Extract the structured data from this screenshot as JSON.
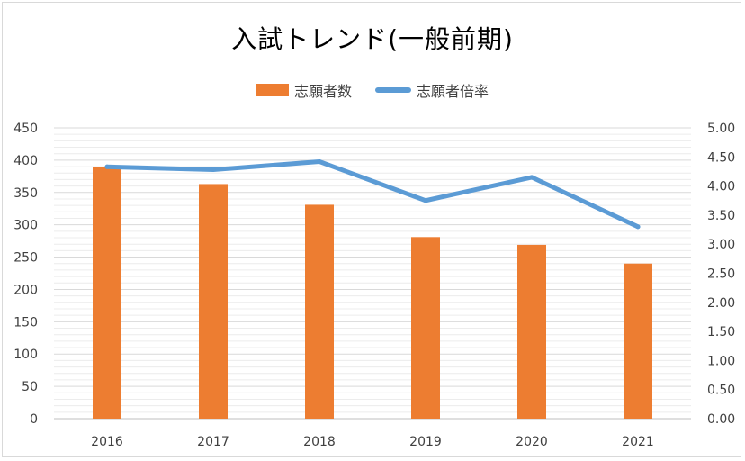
{
  "chart_data": {
    "type": "bar",
    "title": "入試トレンド(一般前期)",
    "categories": [
      "2016",
      "2017",
      "2018",
      "2019",
      "2020",
      "2021"
    ],
    "series": [
      {
        "name": "志願者数",
        "type": "bar",
        "axis": "left",
        "values": [
          390,
          363,
          331,
          281,
          269,
          240
        ]
      },
      {
        "name": "志願者倍率",
        "type": "line",
        "axis": "right",
        "values": [
          4.33,
          4.28,
          4.42,
          3.75,
          4.15,
          3.3
        ]
      }
    ],
    "ylim_left": [
      0,
      450
    ],
    "ylim_right": [
      0,
      5
    ],
    "yticks_left": [
      "0",
      "50",
      "100",
      "150",
      "200",
      "250",
      "300",
      "350",
      "400",
      "450"
    ],
    "yticks_right": [
      "0.00",
      "0.50",
      "1.00",
      "1.50",
      "2.00",
      "2.50",
      "3.00",
      "3.50",
      "4.00",
      "4.50",
      "5.00"
    ],
    "legend_position": "top",
    "grid": true,
    "colors": {
      "bar": "#ed7d31",
      "line": "#5b9bd5",
      "grid": "#d9d9d9",
      "axis": "#bfbfbf"
    }
  }
}
